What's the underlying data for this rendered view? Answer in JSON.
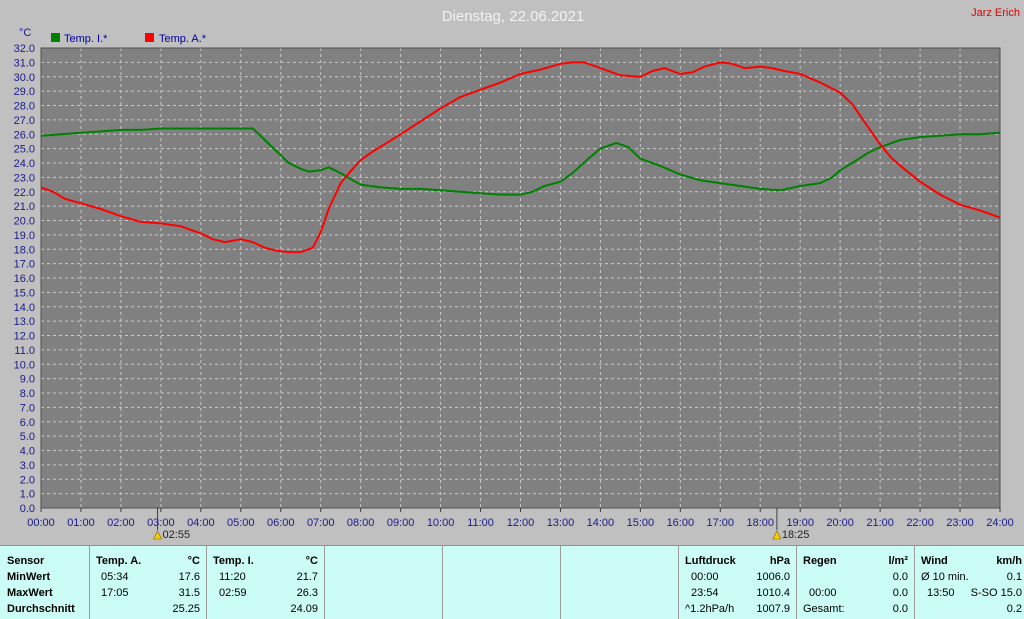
{
  "header": {
    "title": "Dienstag, 22.06.2021",
    "author": "Jarz Erich"
  },
  "chart_data": {
    "type": "line",
    "title": "Dienstag, 22.06.2021",
    "ylabel": "°C",
    "xlabel": "",
    "ylim": [
      0,
      32
    ],
    "ytick_step": 1,
    "xlim": [
      0,
      24
    ],
    "grid": true,
    "legend_placement": "top-left",
    "x_tick_labels": [
      "00:00",
      "01:00",
      "02:00",
      "03:00",
      "04:00",
      "05:00",
      "06:00",
      "07:00",
      "08:00",
      "09:00",
      "10:00",
      "11:00",
      "12:00",
      "13:00",
      "14:00",
      "15:00",
      "16:00",
      "17:00",
      "18:00",
      "19:00",
      "20:00",
      "21:00",
      "22:00",
      "23:00",
      "24:00"
    ],
    "markers": [
      {
        "hour": 2.9167,
        "label": "02:55",
        "icon": "sunrise-icon"
      },
      {
        "hour": 18.4167,
        "label": "18:25",
        "icon": "sunset-icon"
      }
    ],
    "series": [
      {
        "name": "Temp. I.*",
        "color": "#008000",
        "x": [
          0,
          0.5,
          1,
          1.5,
          2,
          2.5,
          3,
          3.5,
          4,
          4.5,
          5,
          5.3,
          5.6,
          5.9,
          6.2,
          6.5,
          6.7,
          7,
          7.2,
          7.5,
          7.8,
          8,
          8.5,
          9,
          9.5,
          10,
          10.5,
          11,
          11.5,
          12,
          12.3,
          12.6,
          13,
          13.3,
          13.7,
          14,
          14.4,
          14.7,
          15,
          15.5,
          16,
          16.5,
          17,
          17.5,
          18,
          18.5,
          19,
          19.5,
          19.8,
          20,
          20.3,
          20.7,
          21,
          21.5,
          22,
          22.5,
          23,
          23.5,
          24
        ],
        "y": [
          25.9,
          26.0,
          26.1,
          26.2,
          26.3,
          26.3,
          26.4,
          26.4,
          26.4,
          26.4,
          26.4,
          26.4,
          25.6,
          24.8,
          24.0,
          23.6,
          23.4,
          23.5,
          23.7,
          23.3,
          22.8,
          22.5,
          22.3,
          22.2,
          22.2,
          22.1,
          22.0,
          21.9,
          21.8,
          21.8,
          22.0,
          22.4,
          22.7,
          23.3,
          24.3,
          25.0,
          25.4,
          25.1,
          24.3,
          23.8,
          23.2,
          22.8,
          22.6,
          22.4,
          22.2,
          22.1,
          22.4,
          22.6,
          23.0,
          23.5,
          24.0,
          24.7,
          25.1,
          25.6,
          25.8,
          25.9,
          26.0,
          26.0,
          26.1
        ]
      },
      {
        "name": "Temp. A.*",
        "color": "#ff0000",
        "x": [
          0,
          0.3,
          0.6,
          1,
          1.5,
          2,
          2.5,
          3,
          3.5,
          4,
          4.3,
          4.6,
          5,
          5.3,
          5.6,
          5.9,
          6.2,
          6.5,
          6.8,
          7,
          7.2,
          7.5,
          7.8,
          8,
          8.3,
          8.6,
          9,
          9.5,
          10,
          10.5,
          11,
          11.5,
          12,
          12.5,
          13,
          13.3,
          13.6,
          14,
          14.5,
          15,
          15.3,
          15.6,
          16,
          16.3,
          16.6,
          17,
          17.3,
          17.6,
          18,
          18.3,
          18.6,
          19,
          19.5,
          20,
          20.3,
          20.6,
          21,
          21.3,
          21.6,
          22,
          22.5,
          23,
          23.5,
          24
        ],
        "y": [
          22.3,
          22.0,
          21.5,
          21.2,
          20.8,
          20.3,
          19.9,
          19.8,
          19.6,
          19.1,
          18.7,
          18.5,
          18.7,
          18.5,
          18.1,
          17.9,
          17.8,
          17.8,
          18.1,
          19.2,
          20.8,
          22.6,
          23.6,
          24.2,
          24.8,
          25.3,
          26.0,
          26.9,
          27.8,
          28.6,
          29.1,
          29.6,
          30.2,
          30.5,
          30.9,
          31.0,
          31.0,
          30.6,
          30.1,
          30.0,
          30.4,
          30.6,
          30.2,
          30.3,
          30.7,
          31.0,
          30.9,
          30.6,
          30.7,
          30.6,
          30.4,
          30.2,
          29.6,
          28.9,
          28.1,
          26.9,
          25.3,
          24.3,
          23.6,
          22.7,
          21.8,
          21.1,
          20.7,
          20.2
        ]
      }
    ]
  },
  "stats": {
    "sensor": {
      "header": "Sensor",
      "rows": [
        "MinWert",
        "MaxWert",
        "Durchschnitt"
      ]
    },
    "temp_a": {
      "header": "Temp. A.",
      "unit": "°C",
      "min_time": "05:34",
      "min_value": "17.6",
      "max_time": "17:05",
      "max_value": "31.5",
      "avg_value": "25.25"
    },
    "temp_i": {
      "header": "Temp. I.",
      "unit": "°C",
      "min_time": "11:20",
      "min_value": "21.7",
      "max_time": "02:59",
      "max_value": "26.3",
      "avg_value": "24.09"
    },
    "pressure": {
      "header": "Luftdruck",
      "unit": "hPa",
      "min_time": "00:00",
      "min_value": "1006.0",
      "max_time": "23:54",
      "max_value": "1010.4",
      "trend_label": "^1.2hPa/h",
      "trend_value": "1007.9"
    },
    "rain": {
      "header": "Regen",
      "unit": "l/m²",
      "row2_value": "0.0",
      "row3_time": "00:00",
      "row3_value": "0.0",
      "total_label": "Gesamt:",
      "total_value": "0.0"
    },
    "wind": {
      "header": "Wind",
      "unit": "km/h",
      "avg_label": "Ø 10 min.",
      "avg_value": "0.1",
      "max_time": "13:50",
      "max_value": "S-SO 15.0",
      "last_value": "0.2"
    }
  }
}
